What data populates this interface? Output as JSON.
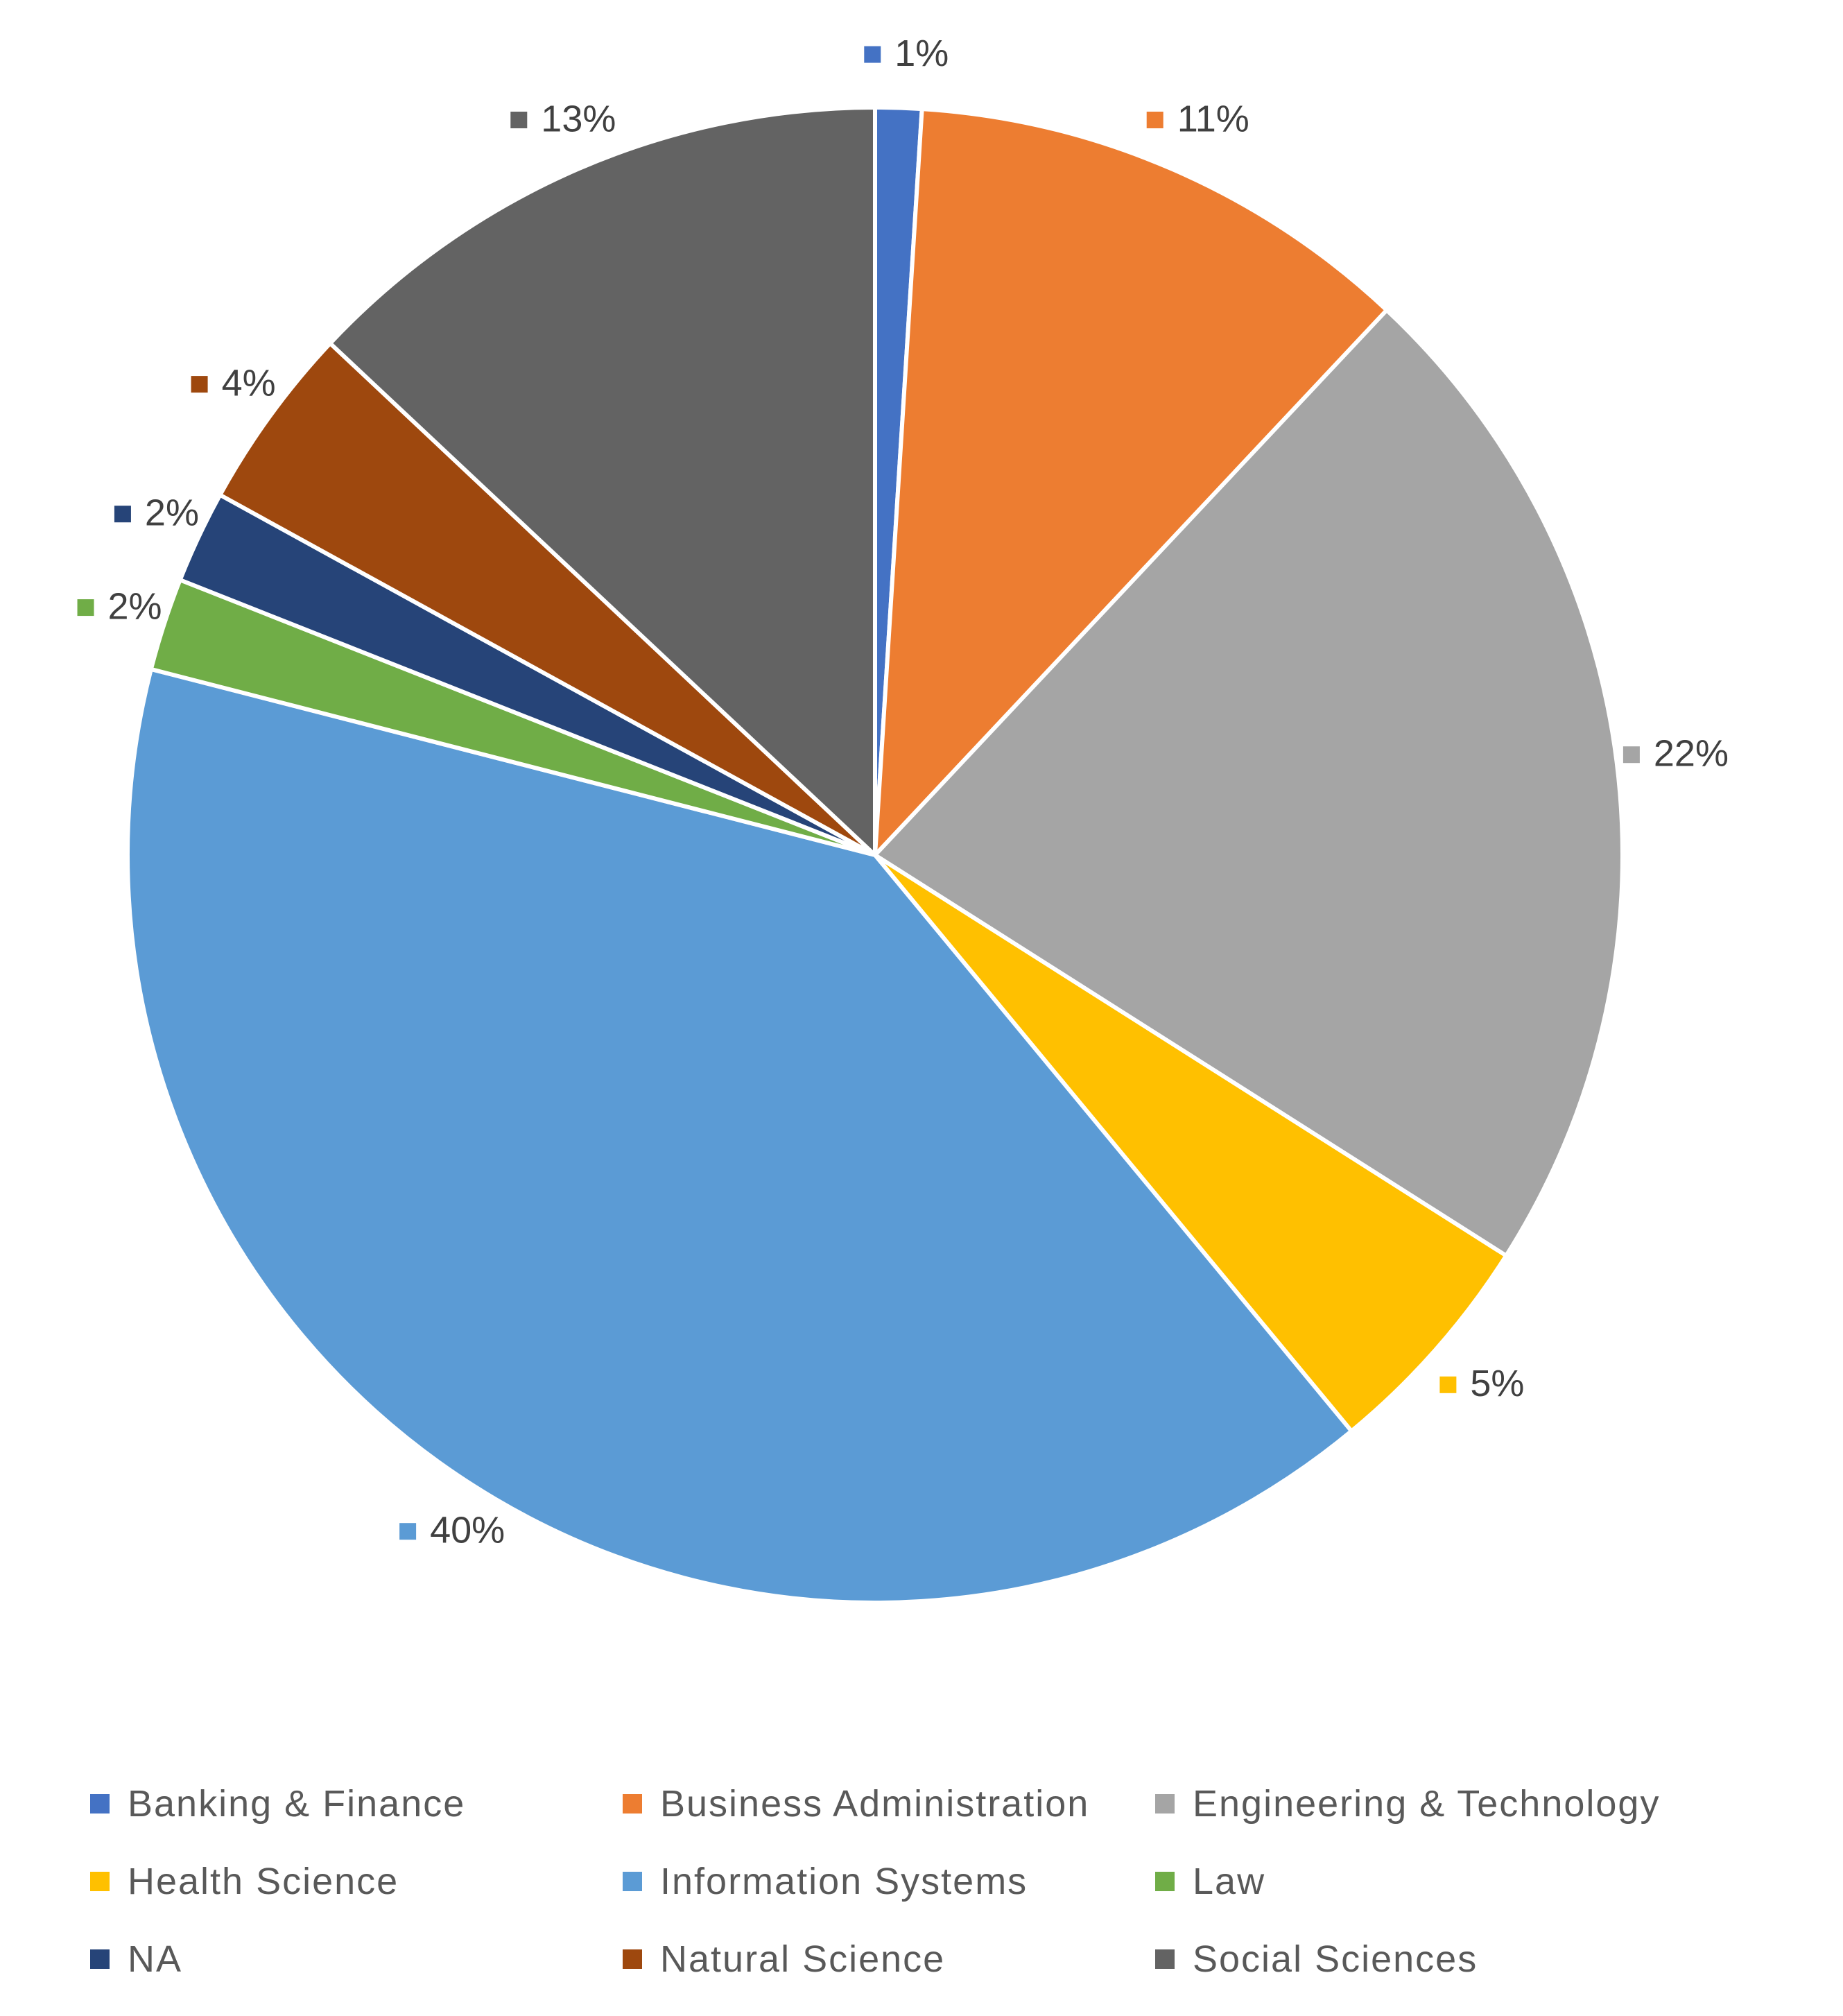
{
  "chart_data": {
    "type": "pie",
    "title": "",
    "legend_position": "bottom",
    "slices": [
      {
        "label": "Banking & Finance",
        "value": 1,
        "display": "1%",
        "color": "#4472C4"
      },
      {
        "label": "Business Administration",
        "value": 11,
        "display": "11%",
        "color": "#ED7D31"
      },
      {
        "label": "Engineering & Technology",
        "value": 22,
        "display": "22%",
        "color": "#A5A5A5"
      },
      {
        "label": "Health Science",
        "value": 5,
        "display": "5%",
        "color": "#FFC000"
      },
      {
        "label": "Information Systems",
        "value": 40,
        "display": "40%",
        "color": "#5B9BD5"
      },
      {
        "label": "Law",
        "value": 2,
        "display": "2%",
        "color": "#70AD47"
      },
      {
        "label": "NA",
        "value": 2,
        "display": "2%",
        "color": "#264478"
      },
      {
        "label": "Natural Science",
        "value": 4,
        "display": "4%",
        "color": "#9E480E"
      },
      {
        "label": "Social Sciences",
        "value": 13,
        "display": "13%",
        "color": "#636363"
      }
    ]
  }
}
